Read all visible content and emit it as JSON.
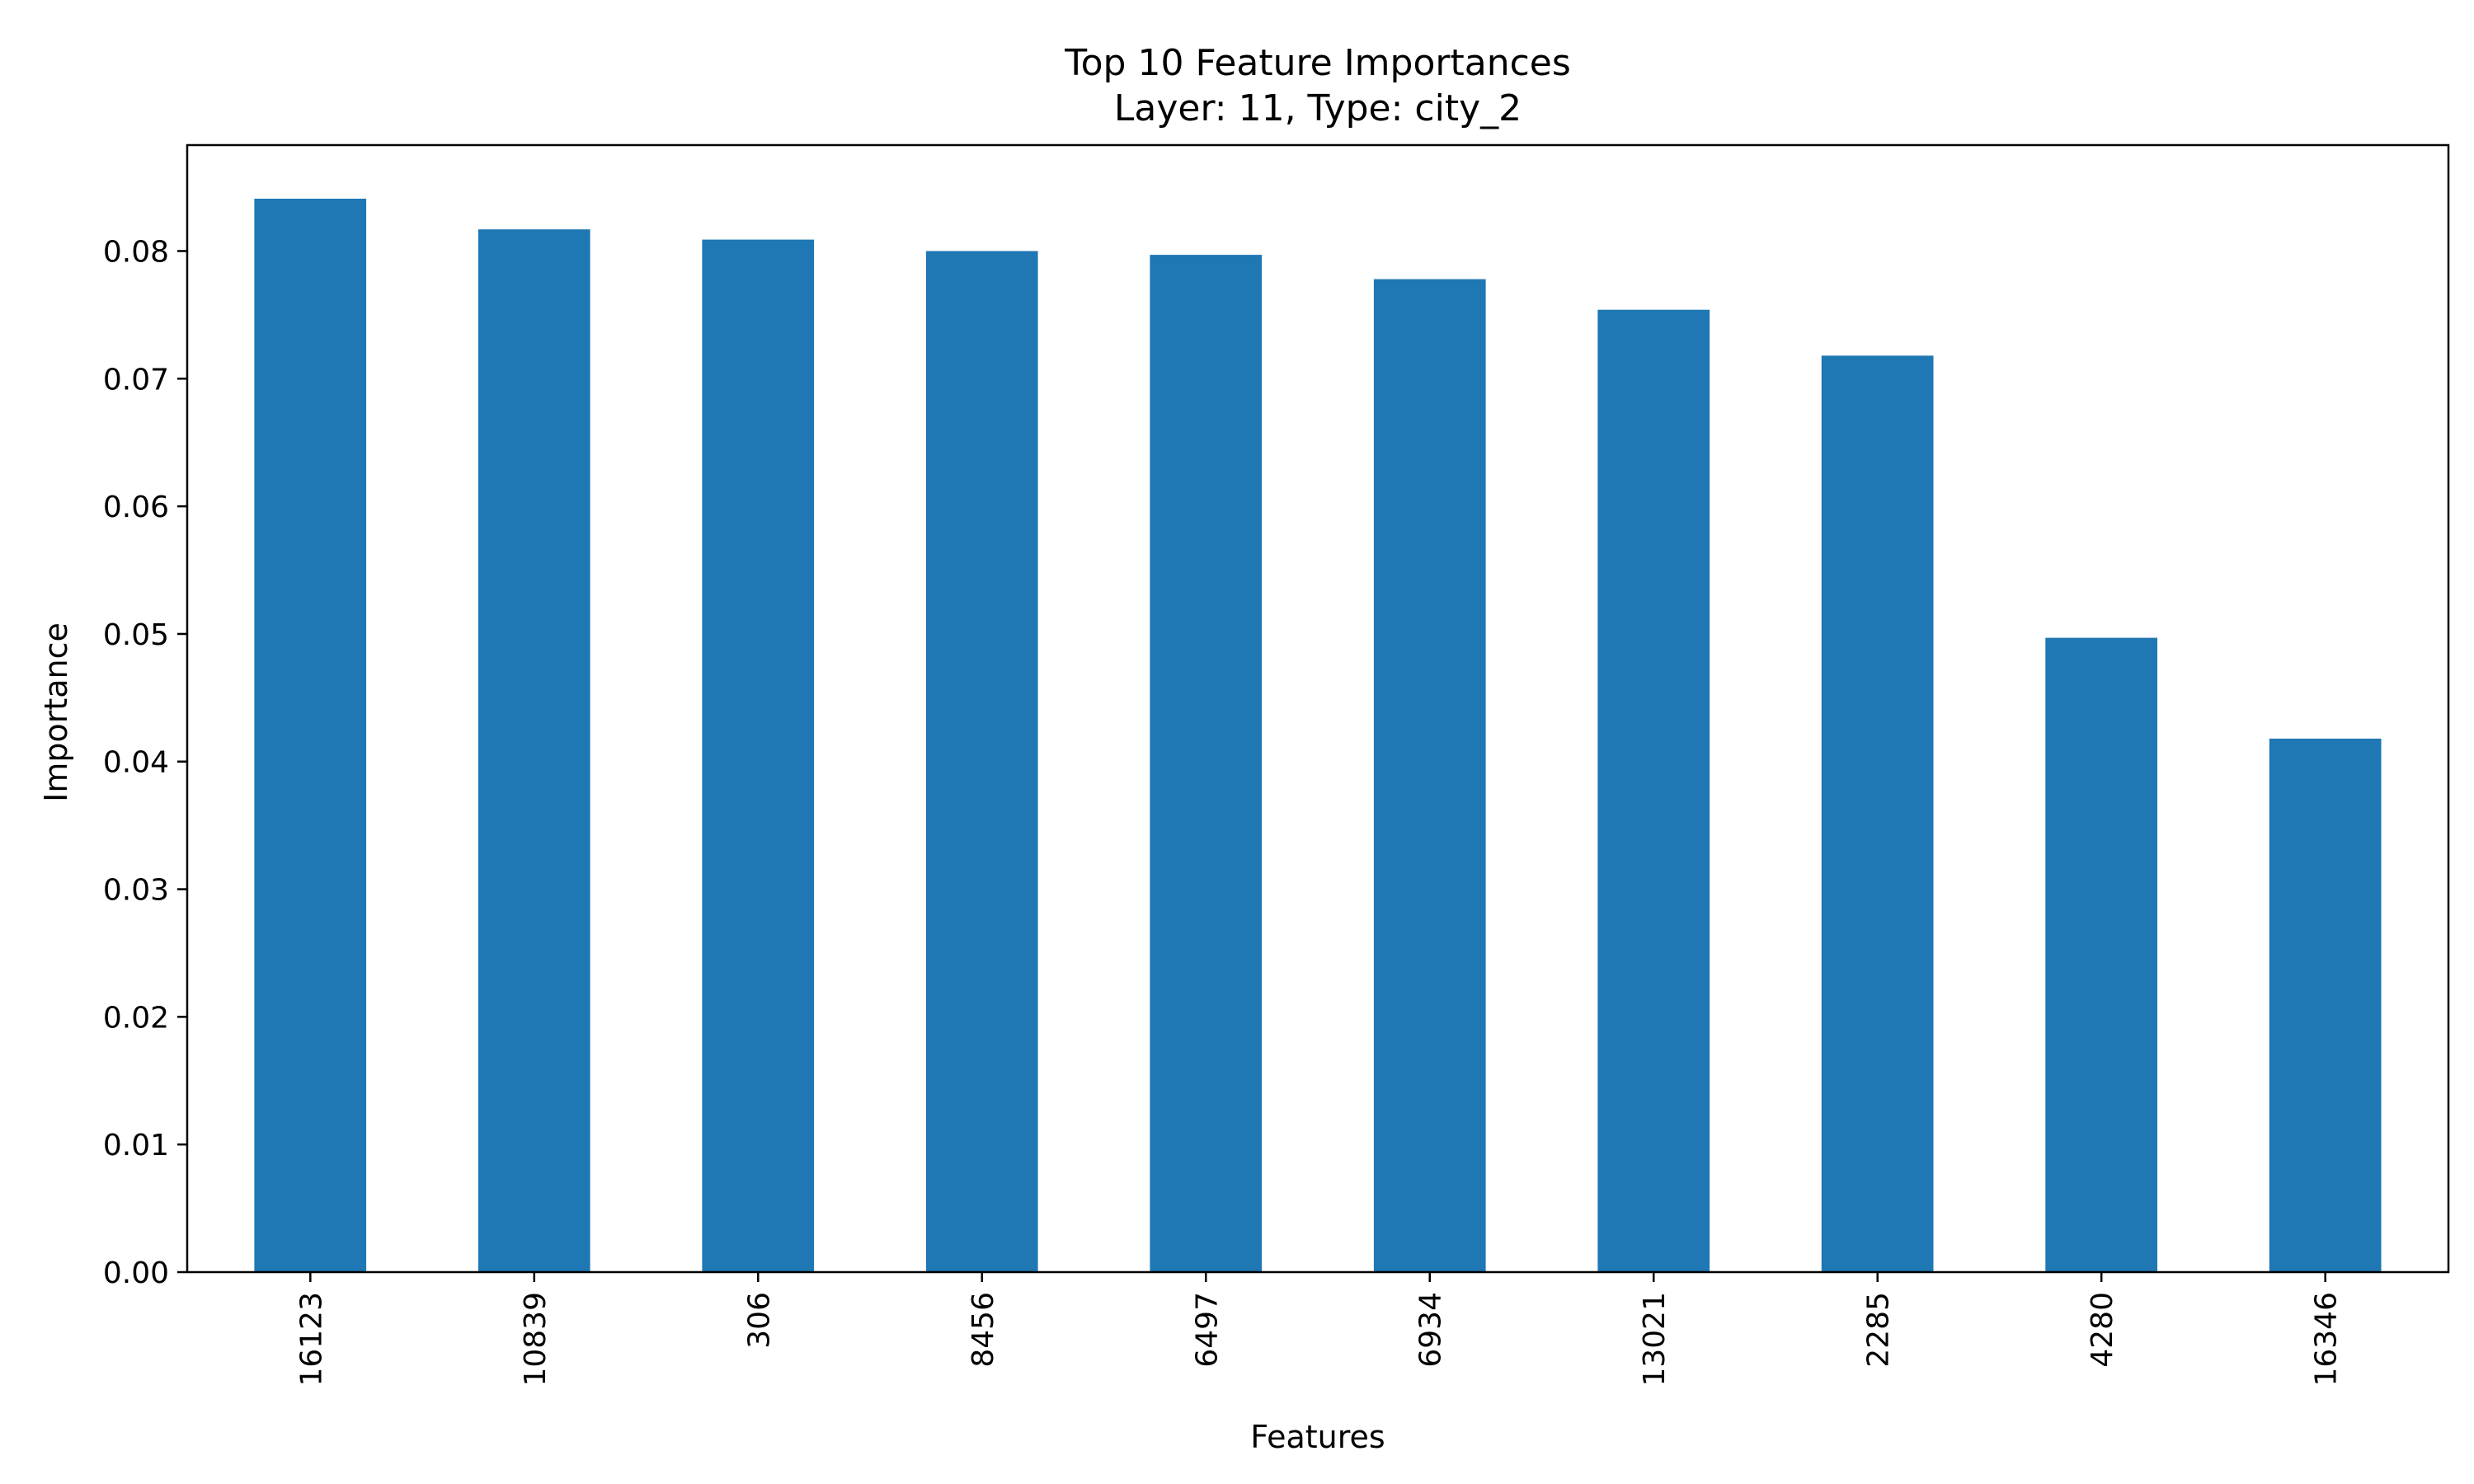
{
  "chart_data": {
    "type": "bar",
    "title_lines": [
      "Top 10 Feature Importances",
      "Layer: 11, Type: city_2"
    ],
    "xlabel": "Features",
    "ylabel": "Importance",
    "categories": [
      "16123",
      "10839",
      "306",
      "8456",
      "6497",
      "6934",
      "13021",
      "2285",
      "4280",
      "16346"
    ],
    "values": [
      0.0841,
      0.0817,
      0.0809,
      0.08,
      0.0797,
      0.0778,
      0.0754,
      0.0718,
      0.0497,
      0.0418
    ],
    "ylim": [
      0,
      0.0883
    ],
    "yticks": [
      0.0,
      0.01,
      0.02,
      0.03,
      0.04,
      0.05,
      0.06,
      0.07,
      0.08
    ],
    "ytick_labels": [
      "0.00",
      "0.01",
      "0.02",
      "0.03",
      "0.04",
      "0.05",
      "0.06",
      "0.07",
      "0.08"
    ],
    "bar_color": "#1f77b4",
    "grid": false,
    "legend": "none"
  }
}
